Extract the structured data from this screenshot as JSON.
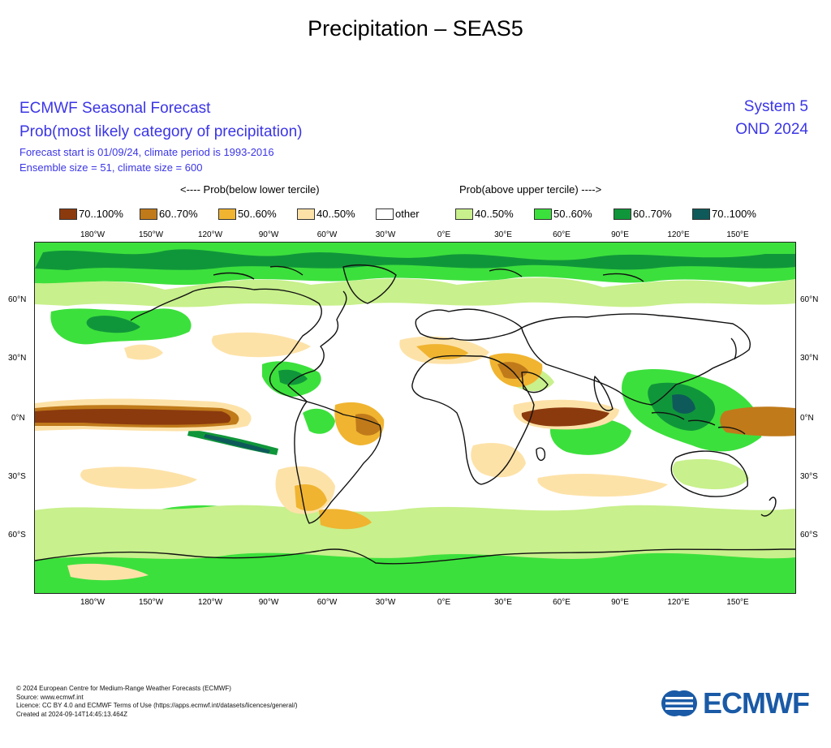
{
  "page": {
    "title": "Precipitation – SEAS5"
  },
  "header": {
    "left_title": "ECMWF Seasonal Forecast",
    "left_subtitle": "Prob(most likely category of precipitation)",
    "forecast_info": "Forecast start is 01/09/24, climate period is 1993-2016",
    "ensemble_info": "Ensemble size = 51, climate size = 600",
    "system": "System 5",
    "season": "OND 2024"
  },
  "tercile_labels": {
    "below": "<---- Prob(below lower tercile)",
    "above": "Prob(above upper tercile) ---->"
  },
  "legend": [
    {
      "label": "70..100%",
      "color": "#8b3a0e"
    },
    {
      "label": "60..70%",
      "color": "#c07a1a"
    },
    {
      "label": "50..60%",
      "color": "#f0b430"
    },
    {
      "label": "40..50%",
      "color": "#fde2a8"
    },
    {
      "label": "other",
      "color": "#ffffff"
    },
    {
      "label": "40..50%",
      "color": "#c8f08c"
    },
    {
      "label": "50..60%",
      "color": "#3ce03c"
    },
    {
      "label": "60..70%",
      "color": "#10963a"
    },
    {
      "label": "70..100%",
      "color": "#0e5a5a"
    }
  ],
  "map": {
    "lon_labels": [
      "180°W",
      "150°W",
      "120°W",
      "90°W",
      "60°W",
      "30°W",
      "0°E",
      "30°E",
      "60°E",
      "90°E",
      "120°E",
      "150°E"
    ],
    "lat_labels": [
      "60°N",
      "30°N",
      "0°N",
      "30°S",
      "60°S"
    ],
    "lon_range": [
      -198,
      192
    ],
    "lat_range": [
      -90,
      90
    ]
  },
  "footer": {
    "lines": [
      "© 2024 European Centre for Medium-Range Weather Forecasts (ECMWF)",
      "Source: www.ecmwf.int",
      "Licence: CC BY 4.0 and ECMWF Terms of Use (https://apps.ecmwf.int/datasets/licences/general/)",
      "Created at 2024-09-14T14:45:13.464Z"
    ]
  },
  "logo": {
    "text": "ECMWF"
  }
}
